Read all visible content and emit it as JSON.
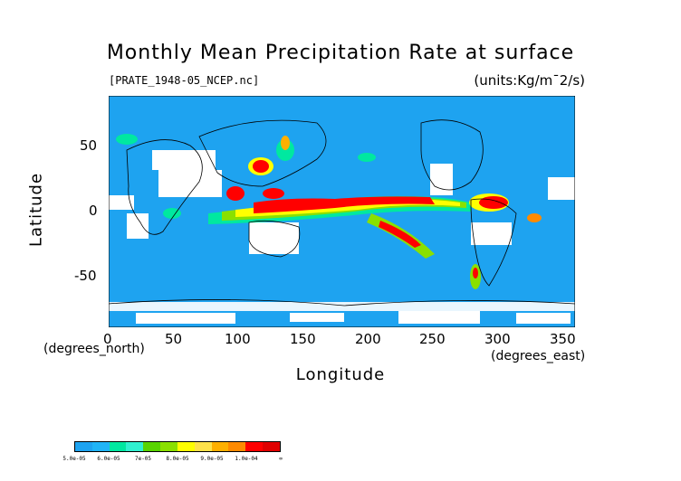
{
  "title": "Monthly Mean Precipitation Rate at surface",
  "file_label": "[PRATE_1948-05_NCEP.nc]",
  "units": "(units:Kg/m¯2/s)",
  "axes": {
    "x_label": "Longitude",
    "y_label": "Latitude",
    "x_units": "(degrees_east)",
    "y_units": "(degrees_north)",
    "x_ticks": [
      "0",
      "50",
      "100",
      "150",
      "200",
      "250",
      "300",
      "350"
    ],
    "y_ticks": [
      "50",
      "0",
      "-50"
    ],
    "x_range": [
      0,
      360
    ],
    "y_range": [
      -90,
      90
    ]
  },
  "colors": {
    "ocean_low": "#1ea3f0",
    "missing": "#ffffff",
    "band_6e5": "#00e8a0",
    "band_7e5": "#8ae000",
    "band_8e5": "#ffff00",
    "band_9e5": "#ffb000",
    "band_1e4": "#ff0000"
  },
  "colorbar": {
    "labels": [
      "5.0e-05",
      "6.0e-05",
      "7e-05",
      "8.0e-05",
      "9.0e-05",
      "1.0e-04",
      "∞"
    ],
    "colors": [
      "#1ea3f0",
      "#20b4f6",
      "#00e8a0",
      "#30f0d0",
      "#58d400",
      "#8ae000",
      "#ffff00",
      "#ffe24a",
      "#ffb000",
      "#ff8a00",
      "#ff0000",
      "#e00000"
    ]
  }
}
